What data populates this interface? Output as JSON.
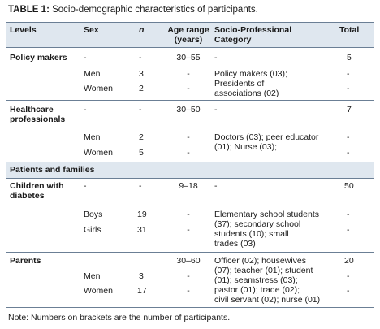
{
  "caption": {
    "label": "TABLE 1:",
    "text": " Socio-demographic characteristics of participants."
  },
  "headers": {
    "levels": "Levels",
    "sex": "Sex",
    "n": "n",
    "age_line1": "Age range",
    "age_line2": "(years)",
    "category_line1": "Socio-Professional",
    "category_line2": "Category",
    "total": "Total"
  },
  "rows": {
    "policy": {
      "level": "Policy makers",
      "sex": "-",
      "n": "-",
      "age": "30–55",
      "category": "-",
      "total": "5",
      "men": {
        "sex": "Men",
        "n": "3",
        "age": "-",
        "category": "Policy makers (03);",
        "total": "-"
      },
      "women": {
        "sex": "Women",
        "n": "2",
        "age": "-",
        "category_l1": "Presidents of",
        "category_l2": "associations (02)",
        "total": "-"
      }
    },
    "healthcare": {
      "level_l1": "Healthcare",
      "level_l2": "professionals",
      "sex": "-",
      "n": "-",
      "age": "30–50",
      "category": "-",
      "total": "7",
      "men": {
        "sex": "Men",
        "n": "2",
        "age": "-",
        "category_l1": "Doctors (03); peer educator",
        "category_l2": "(01); Nurse (03);",
        "total": "-"
      },
      "women": {
        "sex": "Women",
        "n": "5",
        "age": "-",
        "total": "-"
      }
    },
    "patients_section": "Patients and families",
    "children": {
      "level_l1": "Children with",
      "level_l2": "diabetes",
      "sex": "-",
      "n": "-",
      "age": "9–18",
      "category": "-",
      "total": "50",
      "boys": {
        "sex": "Boys",
        "n": "19",
        "age": "-",
        "total": "-"
      },
      "girls": {
        "sex": "Girls",
        "n": "31",
        "age": "-",
        "total": "-"
      },
      "category_lines": [
        "Elementary school students",
        "(37); secondary school",
        "students (10); small",
        "trades (03)"
      ]
    },
    "parents": {
      "level": "Parents",
      "age": "30–60",
      "total": "20",
      "men": {
        "sex": "Men",
        "n": "3",
        "age": "-",
        "total": "-"
      },
      "women": {
        "sex": "Women",
        "n": "17",
        "age": "-",
        "total": "-"
      },
      "category_lines": [
        "Officer (02); housewives",
        "(07); teacher (01); student",
        "(01); seamstress (03);",
        "pastor (01); trade (02);",
        "civil servant (02); nurse (01)"
      ]
    }
  },
  "note": "Note: Numbers on brackets are the number of participants."
}
